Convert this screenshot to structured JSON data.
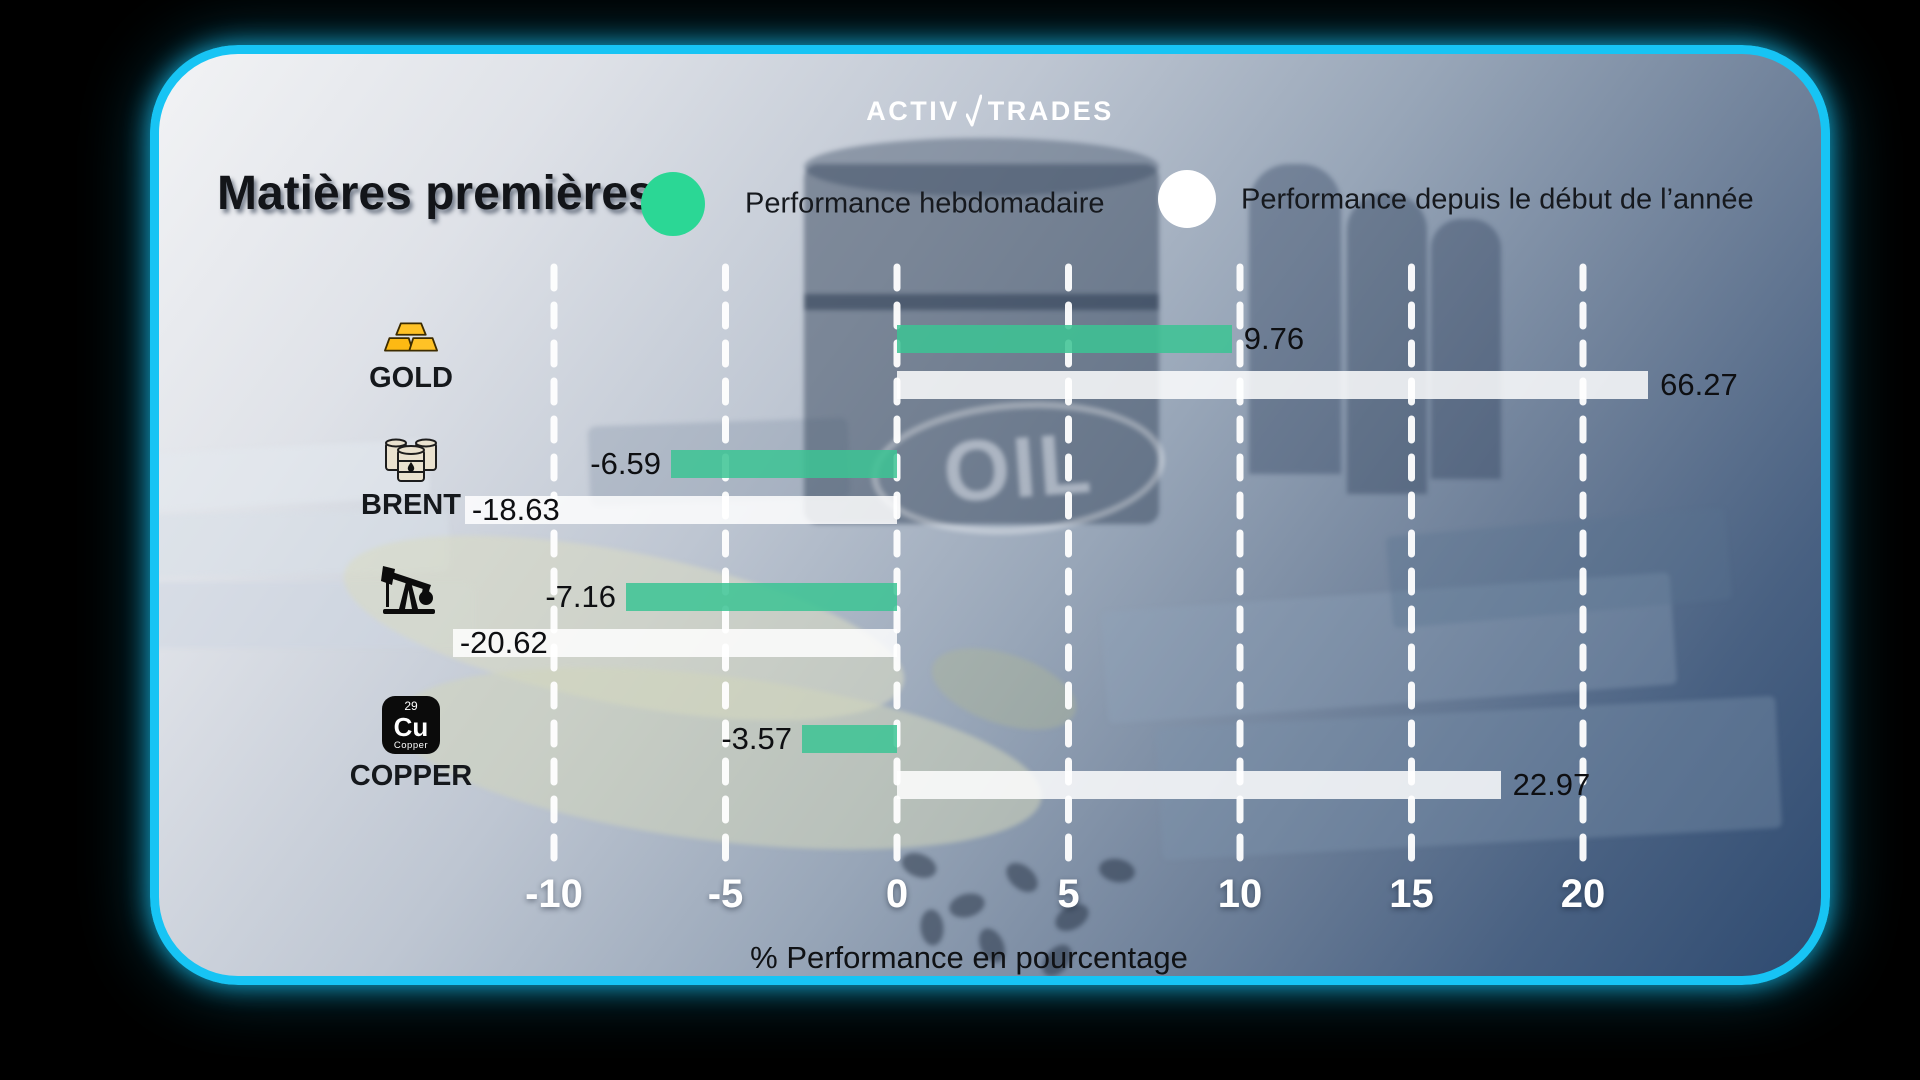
{
  "brand": {
    "logo_left": "ACTIV",
    "logo_right": "TRADES"
  },
  "title": "Matières premières",
  "legend": [
    {
      "id": "weekly",
      "label": "Performance hebdomadaire",
      "swatch_color": "#2bd795"
    },
    {
      "id": "ytd",
      "label": "Performance depuis le début de l’année",
      "swatch_color": "#ffffff"
    }
  ],
  "colors": {
    "weekly_bar": "#3cc494",
    "ytd_bar": "#ffffff",
    "card_border": "#17c4f4",
    "grid": "#ffffff",
    "tick_text": "#ffffff",
    "value_text": "#0e0f12"
  },
  "axis": {
    "label": "% Performance en pourcentage",
    "ticks": [
      "-10",
      "-5",
      "0",
      "5",
      "10",
      "15",
      "20"
    ]
  },
  "rows": [
    {
      "category": "GOLD",
      "icon": "gold-bars-icon",
      "weekly": {
        "value": 9.76,
        "label": "9.76"
      },
      "ytd": {
        "value": 66.27,
        "label": "66.27",
        "drawn_value": 21.9
      }
    },
    {
      "category": "BRENT",
      "icon": "oil-barrels-icon",
      "weekly": {
        "value": -6.59,
        "label": "-6.59"
      },
      "ytd": {
        "value": -18.63,
        "label": "-18.63",
        "drawn_value": -12.6
      }
    },
    {
      "category": "",
      "icon": "oil-pump-icon",
      "weekly": {
        "value": -7.16,
        "label": "-7.16",
        "drawn_value": -7.9
      },
      "ytd": {
        "value": -20.62,
        "label": "-20.62",
        "drawn_value": -12.95
      }
    },
    {
      "category": "COPPER",
      "icon": "copper-element-icon",
      "copper_tile": {
        "number": "29",
        "symbol": "Cu",
        "name": "Copper"
      },
      "weekly": {
        "value": -3.57,
        "label": "-3.57",
        "drawn_value": -2.77
      },
      "ytd": {
        "value": 22.97,
        "label": "22.97",
        "drawn_value": 17.6
      }
    }
  ],
  "background": {
    "oil_text": "OIL"
  },
  "chart_data": {
    "type": "bar",
    "orientation": "horizontal",
    "title": "Matières premières",
    "categories": [
      "GOLD",
      "BRENT",
      "",
      "COPPER"
    ],
    "category_icons": [
      "gold-bars-icon",
      "oil-barrels-icon",
      "oil-pump-icon",
      "copper-element-icon"
    ],
    "series": [
      {
        "name": "Performance hebdomadaire",
        "color": "#3cc494",
        "values": [
          9.76,
          -6.59,
          -7.16,
          -3.57
        ]
      },
      {
        "name": "Performance depuis le début de l’année",
        "color": "#ffffff",
        "values": [
          66.27,
          -18.63,
          -20.62,
          22.97
        ]
      }
    ],
    "xlabel": "% Performance en pourcentage",
    "x_ticks": [
      -10,
      -5,
      0,
      5,
      10,
      15,
      20
    ],
    "xlim": [
      -12.95,
      21.9
    ],
    "grid": "vertical-dashed-white",
    "legend_position": "top",
    "note": "bars exceeding xlim are clipped at plot edges; value labels show true values"
  }
}
